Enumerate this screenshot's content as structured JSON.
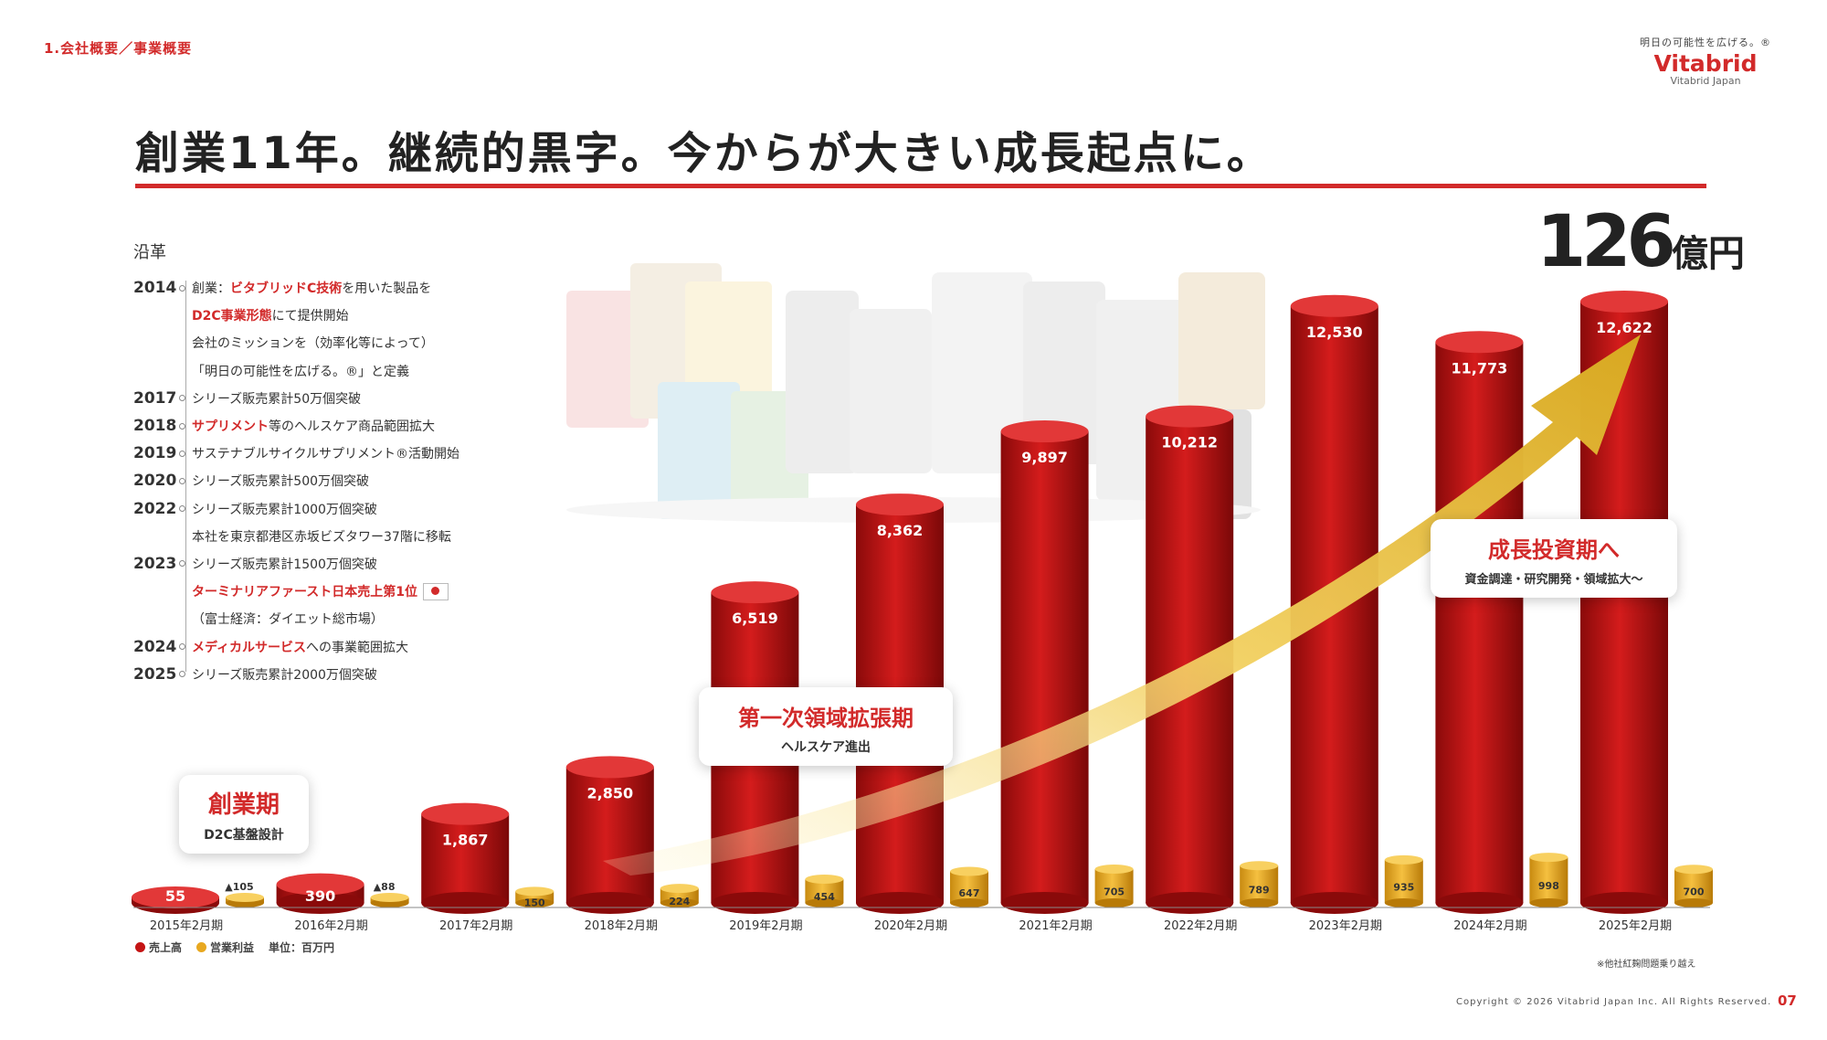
{
  "header": {
    "section": "1.会社概要／事業概要",
    "slogan": "明日の可能性を広げる。®",
    "brand": "Vitabrid",
    "brand_sub": "Vitabrid Japan"
  },
  "title": "創業11年。継続的黒字。今からが大きい成長起点に。",
  "total": {
    "value": "126",
    "unit": "億円"
  },
  "history": {
    "label": "沿革",
    "rows": [
      {
        "year": "2014",
        "pre": "創業：",
        "hl": "ビタブリッドC技術",
        "post": "を用いた製品を"
      },
      {
        "year": "",
        "pre": "",
        "hl": "D2C事業形態",
        "post": "にて提供開始"
      },
      {
        "year": "",
        "pre": "会社のミッションを（効率化等によって）",
        "hl": "",
        "post": ""
      },
      {
        "year": "",
        "pre": "「明日の可能性を広げる。®」と定義",
        "hl": "",
        "post": ""
      },
      {
        "year": "2017",
        "pre": "シリーズ販売累計50万個突破",
        "hl": "",
        "post": ""
      },
      {
        "year": "2018",
        "pre": "",
        "hl": "サプリメント",
        "post": "等のヘルスケア商品範囲拡大"
      },
      {
        "year": "2019",
        "pre": "サステナブルサイクルサプリメント®活動開始",
        "hl": "",
        "post": ""
      },
      {
        "year": "2020",
        "pre": "シリーズ販売累計500万個突破",
        "hl": "",
        "post": ""
      },
      {
        "year": "2022",
        "pre": "シリーズ販売累計1000万個突破",
        "hl": "",
        "post": ""
      },
      {
        "year": "",
        "pre": "本社を東京都港区赤坂ビズタワー37階に移転",
        "hl": "",
        "post": ""
      },
      {
        "year": "2023",
        "pre": "シリーズ販売累計1500万個突破",
        "hl": "",
        "post": ""
      },
      {
        "year": "",
        "pre": "",
        "hl": "ターミナリアファースト日本売上第1位",
        "post": ""
      },
      {
        "year": "",
        "pre": "（富士経済：ダイエット総市場）",
        "hl": "",
        "post": ""
      },
      {
        "year": "2024",
        "pre": "",
        "hl": "メディカルサービス",
        "post": "への事業範囲拡大"
      },
      {
        "year": "2025",
        "pre": "シリーズ販売累計2000万個突破",
        "hl": "",
        "post": ""
      }
    ]
  },
  "callouts": {
    "founding": {
      "title": "創業期",
      "sub": "D2C基盤設計"
    },
    "first": {
      "title": "第一次領域拡張期",
      "sub": "ヘルスケア進出"
    },
    "growth": {
      "title": "成長投資期へ",
      "sub": "資金調達・研究開発・領域拡大〜"
    }
  },
  "legend": {
    "sales": "売上高",
    "op": "営業利益",
    "unit": "単位：百万円"
  },
  "footnote": "※他社紅麹問題乗り越え",
  "copyright": "Copyright © 2026 Vitabrid Japan Inc. All Rights Reserved.",
  "page": "07",
  "colors": {
    "accent": "#d22a2a",
    "bar_red": "#c41414",
    "bar_gold": "#e8a820"
  },
  "chart_data": {
    "type": "bar",
    "categories": [
      "2015年2月期",
      "2016年2月期",
      "2017年2月期",
      "2018年2月期",
      "2019年2月期",
      "2020年2月期",
      "2021年2月期",
      "2022年2月期",
      "2023年2月期",
      "2024年2月期",
      "2025年2月期"
    ],
    "series": [
      {
        "name": "売上高",
        "values": [
          55,
          390,
          1867,
          2850,
          6519,
          8362,
          9897,
          10212,
          12530,
          11773,
          12622
        ],
        "labels": [
          "55",
          "390",
          "1,867",
          "2,850",
          "6,519",
          "8,362",
          "9,897",
          "10,212",
          "12,530",
          "11,773",
          "12,622"
        ]
      },
      {
        "name": "営業利益",
        "values": [
          -105,
          -88,
          150,
          224,
          454,
          647,
          705,
          789,
          935,
          998,
          700
        ],
        "labels": [
          "▲105",
          "▲88",
          "150",
          "224",
          "454",
          "647",
          "705",
          "789",
          "935",
          "998",
          "700"
        ]
      }
    ],
    "ylabel": "百万円",
    "ylim": [
      0,
      12622
    ]
  }
}
